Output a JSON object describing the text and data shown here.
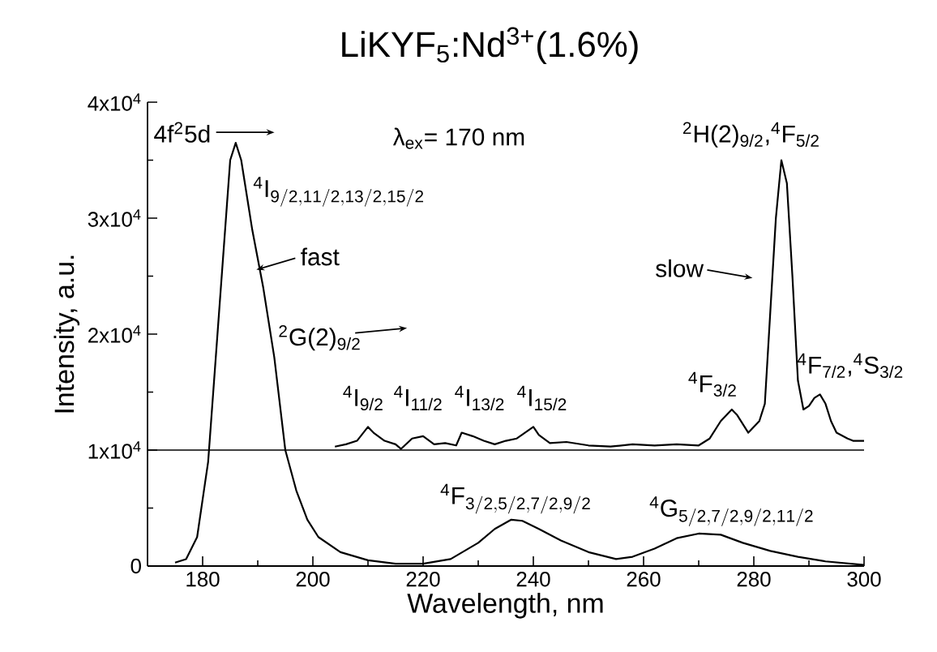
{
  "chart_data": {
    "type": "line",
    "title": "LiKYF$_{5}$:Nd$^{3+}$(1.6%)",
    "xlabel": "Wavelength, nm",
    "ylabel": "Intensity, a.u.",
    "xlim": [
      170,
      300
    ],
    "ylim": [
      0,
      40000
    ],
    "xticks": [
      180,
      200,
      220,
      240,
      260,
      280,
      300
    ],
    "yticks": [
      0,
      {
        "value": 10000,
        "label": "1x10$^{4}$"
      },
      {
        "value": 20000,
        "label": "2x10$^{4}$"
      },
      {
        "value": 30000,
        "label": "3x10$^{4}$"
      },
      {
        "value": 40000,
        "label": "4x10$^{4}$"
      }
    ],
    "series": [
      {
        "color": "#000000",
        "x": [
          175,
          177,
          179,
          181,
          183,
          185,
          186,
          187,
          189,
          191,
          193,
          195,
          197,
          199,
          201,
          205,
          210,
          215,
          220,
          225,
          230,
          233,
          236,
          238,
          241,
          245,
          250,
          255,
          258,
          262,
          266,
          270,
          274,
          278,
          283,
          288,
          293,
          300
        ],
        "values": [
          300,
          600,
          2500,
          9000,
          22000,
          35000,
          36500,
          35000,
          29000,
          24000,
          18000,
          10000,
          6500,
          4000,
          2500,
          1200,
          500,
          200,
          200,
          600,
          2000,
          3200,
          4000,
          3900,
          3200,
          2200,
          1200,
          600,
          800,
          1500,
          2400,
          2800,
          2700,
          2000,
          1300,
          800,
          400,
          100
        ]
      },
      {
        "color": "#000000",
        "x": [
          204,
          206,
          208,
          210,
          211,
          213,
          215,
          216,
          218,
          220,
          222,
          224,
          226,
          227,
          229,
          231,
          233,
          235,
          237,
          240,
          241,
          243,
          246,
          250,
          254,
          258,
          262,
          266,
          270,
          272,
          274,
          276,
          277,
          279,
          281,
          282,
          283,
          284,
          285,
          286,
          287,
          288,
          289,
          290,
          291,
          292,
          293,
          294,
          295,
          297,
          298,
          300
        ],
        "values": [
          10300,
          10500,
          10800,
          12000,
          11500,
          10800,
          10500,
          10100,
          11000,
          11200,
          10500,
          10600,
          10400,
          11500,
          11200,
          10800,
          10500,
          10800,
          11000,
          12000,
          11300,
          10600,
          10700,
          10400,
          10300,
          10500,
          10400,
          10500,
          10400,
          11000,
          12500,
          13500,
          13000,
          11500,
          12500,
          14000,
          22000,
          30000,
          35000,
          33000,
          25000,
          16000,
          13500,
          13800,
          14500,
          14800,
          14000,
          12500,
          11500,
          11000,
          10800,
          10800
        ]
      }
    ],
    "ref_lines": [
      {
        "axis": "y",
        "value": 10000,
        "color": "#000000"
      }
    ],
    "annotations": [
      "4f$^{2}$5d",
      "\\mathrm{^{4}I_{9/2,11/2,13/2,15/2}}",
      "fast",
      "$^{2}$G(2)$_{9/2}$",
      "$^{4}$I$_{9/2}$",
      "$^{4}$I$_{11/2}$",
      "$^{4}$I$_{13/2}$",
      "$^{4}$I$_{15/2}$",
      "λ$_{ex}$= 170 nm",
      "$^{2}$H(2)$_{9/2}$,$^{4}$F$_{5/2}$",
      "slow",
      "$^{4}$F$_{3/2}$",
      "$^{4}$F$_{7/2}$,$^{4}$S$_{3/2}$",
      "\\mathrm{^{4}F_{3/2,5/2,7/2,9/2}}",
      "\\mathrm{^{4}G_{5/2,7/2,9/2,11/2}}"
    ]
  }
}
